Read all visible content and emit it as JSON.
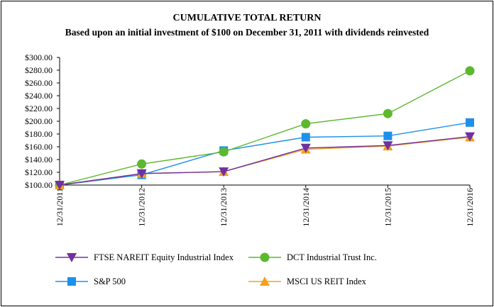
{
  "chart_data": {
    "type": "line",
    "title": "CUMULATIVE TOTAL RETURN",
    "subtitle": "Based upon an initial investment of $100 on December 31, 2011 with dividends reinvested",
    "xlabel": "",
    "ylabel": "",
    "categories": [
      "12/31/2011",
      "12/31/2012",
      "12/31/2013",
      "12/31/2014",
      "12/31/2015",
      "12/31/2016"
    ],
    "ylim": [
      100,
      300
    ],
    "yticks": [
      100,
      120,
      140,
      160,
      180,
      200,
      220,
      240,
      260,
      280,
      300
    ],
    "ytick_labels": [
      "$100.00",
      "$120.00",
      "$140.00",
      "$160.00",
      "$180.00",
      "$200.00",
      "$220.00",
      "$240.00",
      "$260.00",
      "$280.00",
      "$300.00"
    ],
    "grid": false,
    "legend_position": "bottom",
    "series": [
      {
        "name": "FTSE NAREIT Equity Industrial Index",
        "marker": "triangle-down",
        "color": "#7030a0",
        "values": [
          100,
          118,
          121,
          158,
          162,
          176
        ]
      },
      {
        "name": "DCT Industrial Trust Inc.",
        "marker": "circle",
        "color": "#5cb82f",
        "values": [
          100,
          133,
          152,
          196,
          212,
          279
        ]
      },
      {
        "name": "S&P 500",
        "marker": "square",
        "color": "#1e90ea",
        "values": [
          100,
          116,
          154,
          175,
          177,
          198
        ]
      },
      {
        "name": "MSCI US REIT Index",
        "marker": "triangle-up",
        "color": "#f4a020",
        "values": [
          100,
          118,
          121,
          156,
          161,
          175
        ]
      }
    ]
  }
}
